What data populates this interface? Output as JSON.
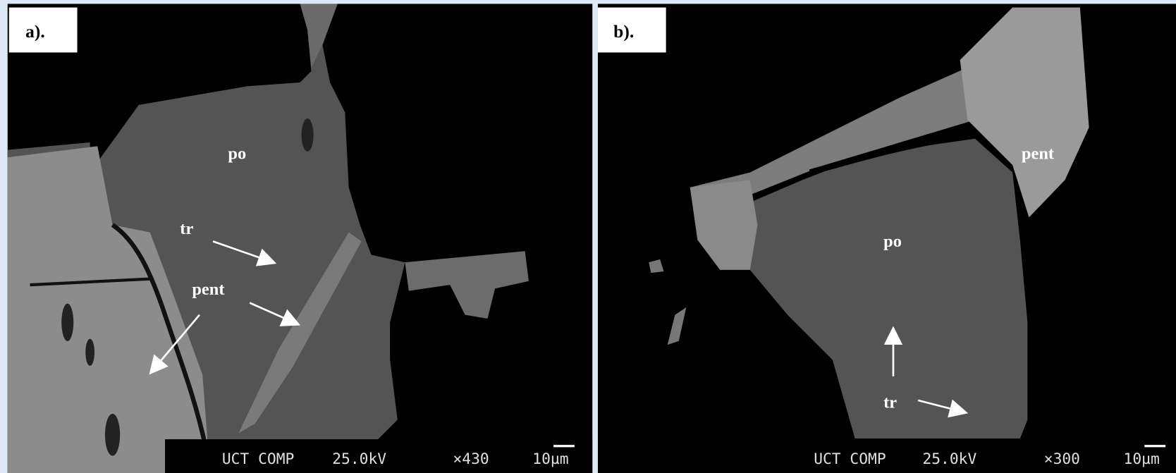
{
  "panels": [
    {
      "label": "a).",
      "annotations": [
        "po",
        "tr",
        "pent"
      ],
      "info": {
        "detector": "UCT COMP",
        "voltage": "25.0kV",
        "magnification": "×430",
        "scale": "10µm"
      }
    },
    {
      "label": "b).",
      "annotations": [
        "pent",
        "po",
        "tr"
      ],
      "info": {
        "detector": "UCT COMP",
        "voltage": "25.0kV",
        "magnification": "×300",
        "scale": "10µm"
      }
    }
  ]
}
